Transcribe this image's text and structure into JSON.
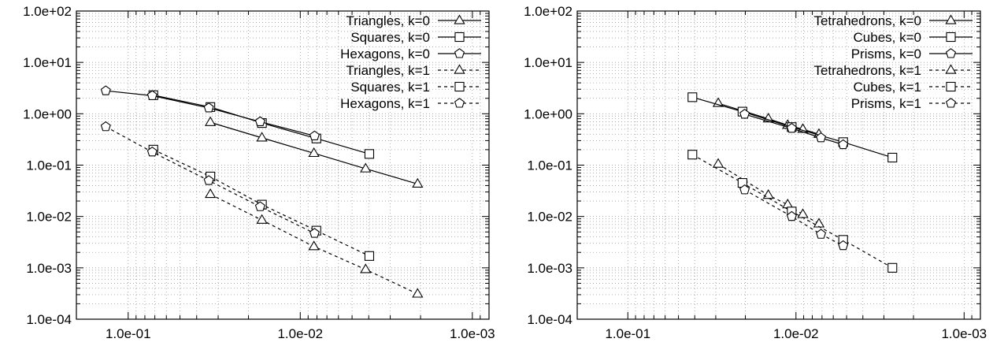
{
  "chart_data": [
    {
      "type": "line",
      "x_scale": "log",
      "y_scale": "log",
      "x_reversed": true,
      "xlim": [
        0.2,
        0.0008
      ],
      "ylim": [
        0.0001,
        100
      ],
      "grid": true,
      "legend_position": "top-right",
      "x_ticks": [
        "1.0e-01",
        "1.0e-02",
        "1.0e-03"
      ],
      "y_ticks": [
        "1.0e-04",
        "1.0e-03",
        "1.0e-02",
        "1.0e-01",
        "1.0e+00",
        "1.0e+01",
        "1.0e+02"
      ],
      "series": [
        {
          "name": "Triangles, k=0",
          "marker": "triangle",
          "dash": "solid",
          "x": [
            0.0333,
            0.0167,
            0.00833,
            0.00417,
            0.00208
          ],
          "y": [
            0.68,
            0.34,
            0.17,
            0.085,
            0.043
          ]
        },
        {
          "name": "Squares, k=0",
          "marker": "square",
          "dash": "solid",
          "x": [
            0.0714,
            0.0333,
            0.0167,
            0.00806,
            0.00397
          ],
          "y": [
            2.3,
            1.35,
            0.66,
            0.33,
            0.165
          ]
        },
        {
          "name": "Hexagons, k=0",
          "marker": "pentagon",
          "dash": "solid",
          "x": [
            0.135,
            0.0725,
            0.034,
            0.0171,
            0.00826
          ],
          "y": [
            2.8,
            2.25,
            1.3,
            0.7,
            0.37
          ]
        },
        {
          "name": "Triangles, k=1",
          "marker": "triangle",
          "dash": "dashed",
          "x": [
            0.0333,
            0.0167,
            0.00833,
            0.00417,
            0.00208
          ],
          "y": [
            0.027,
            0.0085,
            0.0026,
            0.00093,
            0.00031
          ]
        },
        {
          "name": "Squares, k=1",
          "marker": "square",
          "dash": "dashed",
          "x": [
            0.0714,
            0.0333,
            0.0167,
            0.00806,
            0.00397
          ],
          "y": [
            0.2,
            0.06,
            0.017,
            0.0053,
            0.0017
          ]
        },
        {
          "name": "Hexagons, k=1",
          "marker": "pentagon",
          "dash": "dashed",
          "x": [
            0.135,
            0.0725,
            0.034,
            0.0171,
            0.00826
          ],
          "y": [
            0.56,
            0.18,
            0.05,
            0.0155,
            0.0047
          ]
        }
      ]
    },
    {
      "type": "line",
      "x_scale": "log",
      "y_scale": "log",
      "x_reversed": true,
      "xlim": [
        0.2,
        0.0008
      ],
      "ylim": [
        0.0001,
        100
      ],
      "grid": true,
      "legend_position": "top-right",
      "x_ticks": [
        "1.0e-01",
        "1.0e-02",
        "1.0e-03"
      ],
      "y_ticks": [
        "1.0e-04",
        "1.0e-03",
        "1.0e-02",
        "1.0e-01",
        "1.0e+00",
        "1.0e+01",
        "1.0e+02"
      ],
      "series": [
        {
          "name": "Tetrahedrons, k=0",
          "marker": "triangle",
          "dash": "solid",
          "x": [
            0.029,
            0.0146,
            0.0112,
            0.0091,
            0.0073
          ],
          "y": [
            1.6,
            0.8,
            0.6,
            0.5,
            0.4
          ]
        },
        {
          "name": "Cubes, k=0",
          "marker": "square",
          "dash": "solid",
          "x": [
            0.0413,
            0.0208,
            0.0106,
            0.00524,
            0.00267
          ],
          "y": [
            2.1,
            1.1,
            0.55,
            0.28,
            0.14
          ]
        },
        {
          "name": "Prisms, k=0",
          "marker": "pentagon",
          "dash": "solid",
          "x": [
            0.0202,
            0.0106,
            0.0071,
            0.00524
          ],
          "y": [
            0.98,
            0.52,
            0.34,
            0.25
          ]
        },
        {
          "name": "Tetrahedrons, k=1",
          "marker": "triangle",
          "dash": "dashed",
          "x": [
            0.029,
            0.0146,
            0.0112,
            0.0091,
            0.0073
          ],
          "y": [
            0.105,
            0.026,
            0.017,
            0.011,
            0.0072
          ]
        },
        {
          "name": "Cubes, k=1",
          "marker": "square",
          "dash": "dashed",
          "x": [
            0.0413,
            0.0208,
            0.0106,
            0.00524,
            0.00267
          ],
          "y": [
            0.16,
            0.045,
            0.0125,
            0.0035,
            0.001
          ]
        },
        {
          "name": "Prisms, k=1",
          "marker": "pentagon",
          "dash": "dashed",
          "x": [
            0.0202,
            0.0106,
            0.0071,
            0.00524
          ],
          "y": [
            0.033,
            0.01,
            0.0045,
            0.0027
          ]
        }
      ]
    }
  ]
}
